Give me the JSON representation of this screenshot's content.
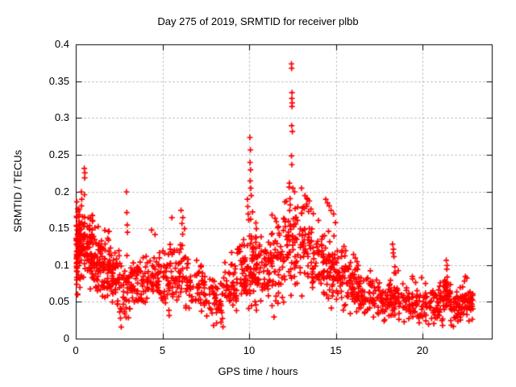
{
  "window": {
    "background": "#ffffff"
  },
  "chart_data": {
    "type": "scatter",
    "title": "Day 275 of 2019, SRMTID for receiver plbb",
    "xlabel": "GPS time / hours",
    "ylabel": "SRMTID / TECUs",
    "xlim": [
      0,
      24
    ],
    "ylim": [
      0,
      0.4
    ],
    "xticks": [
      0,
      5,
      10,
      15,
      20
    ],
    "yticks": [
      0,
      0.05,
      0.1,
      0.15,
      0.2,
      0.25,
      0.3,
      0.35,
      0.4
    ],
    "xtick_labels": [
      "0",
      "5",
      "10",
      "15",
      "20"
    ],
    "ytick_labels": [
      "0",
      "0.05",
      "0.1",
      "0.15",
      "0.2",
      "0.25",
      "0.3",
      "0.35",
      "0.4"
    ],
    "grid": true,
    "grid_style": "dashed",
    "legend": "none",
    "data_time_range": [
      0,
      22.9
    ],
    "marker": {
      "shape": "plus",
      "color": "#ff0000",
      "size": 7,
      "stroke_width": 1.7
    },
    "grid_color": "#a8a8a8",
    "axis_color": "#000000",
    "seed": 20190275,
    "density_bins": [
      [
        0.0,
        0.15,
        55,
        0.12,
        0.06,
        0.19
      ],
      [
        0.15,
        0.5,
        55,
        0.13,
        0.07,
        0.2
      ],
      [
        0.5,
        1.0,
        60,
        0.115,
        0.068,
        0.185
      ],
      [
        1.0,
        1.5,
        50,
        0.1,
        0.058,
        0.16
      ],
      [
        1.5,
        2.0,
        48,
        0.09,
        0.05,
        0.155
      ],
      [
        2.0,
        2.5,
        45,
        0.08,
        0.045,
        0.13
      ],
      [
        2.5,
        3.2,
        48,
        0.07,
        0.015,
        0.125
      ],
      [
        3.2,
        4.0,
        50,
        0.072,
        0.038,
        0.12
      ],
      [
        4.0,
        4.8,
        48,
        0.075,
        0.04,
        0.13
      ],
      [
        4.8,
        5.6,
        50,
        0.078,
        0.022,
        0.135
      ],
      [
        5.6,
        6.5,
        52,
        0.085,
        0.04,
        0.15
      ],
      [
        6.5,
        7.5,
        52,
        0.07,
        0.033,
        0.115
      ],
      [
        7.5,
        8.5,
        50,
        0.055,
        0.015,
        0.1
      ],
      [
        8.5,
        9.3,
        48,
        0.068,
        0.038,
        0.12
      ],
      [
        9.3,
        9.9,
        45,
        0.085,
        0.048,
        0.16
      ],
      [
        9.9,
        10.4,
        52,
        0.1,
        0.035,
        0.185
      ],
      [
        10.4,
        11.2,
        52,
        0.09,
        0.048,
        0.155
      ],
      [
        11.2,
        12.0,
        55,
        0.1,
        0.03,
        0.175
      ],
      [
        12.0,
        12.7,
        58,
        0.125,
        0.058,
        0.215
      ],
      [
        12.7,
        13.6,
        58,
        0.125,
        0.058,
        0.205
      ],
      [
        13.6,
        14.3,
        52,
        0.1,
        0.048,
        0.175
      ],
      [
        14.3,
        15.0,
        50,
        0.09,
        0.042,
        0.16
      ],
      [
        15.0,
        15.8,
        48,
        0.08,
        0.038,
        0.14
      ],
      [
        15.8,
        16.4,
        45,
        0.068,
        0.033,
        0.115
      ],
      [
        16.4,
        17.2,
        46,
        0.058,
        0.028,
        0.1
      ],
      [
        17.2,
        18.1,
        46,
        0.05,
        0.024,
        0.09
      ],
      [
        18.1,
        18.6,
        40,
        0.055,
        0.028,
        0.1
      ],
      [
        18.6,
        19.6,
        50,
        0.05,
        0.022,
        0.092
      ],
      [
        19.6,
        20.6,
        50,
        0.045,
        0.016,
        0.085
      ],
      [
        20.6,
        21.2,
        42,
        0.045,
        0.018,
        0.08
      ],
      [
        21.2,
        21.6,
        40,
        0.058,
        0.028,
        0.1
      ],
      [
        21.6,
        22.3,
        46,
        0.045,
        0.014,
        0.08
      ],
      [
        22.3,
        22.9,
        44,
        0.05,
        0.02,
        0.085
      ]
    ],
    "outliers": [
      [
        0.3,
        0.2
      ],
      [
        0.32,
        0.19
      ],
      [
        0.47,
        0.232
      ],
      [
        0.5,
        0.226
      ],
      [
        0.49,
        0.219
      ],
      [
        2.9,
        0.2
      ],
      [
        2.92,
        0.172
      ],
      [
        2.94,
        0.155
      ],
      [
        2.96,
        0.145
      ],
      [
        4.35,
        0.148
      ],
      [
        4.55,
        0.142
      ],
      [
        5.52,
        0.165
      ],
      [
        6.05,
        0.175
      ],
      [
        6.15,
        0.165
      ],
      [
        6.1,
        0.157
      ],
      [
        6.25,
        0.15
      ],
      [
        9.88,
        0.19
      ],
      [
        9.9,
        0.18
      ],
      [
        9.92,
        0.17
      ],
      [
        9.95,
        0.162
      ],
      [
        10.02,
        0.274
      ],
      [
        10.05,
        0.257
      ],
      [
        10.03,
        0.24
      ],
      [
        10.06,
        0.23
      ],
      [
        10.04,
        0.215
      ],
      [
        10.07,
        0.205
      ],
      [
        10.1,
        0.195
      ],
      [
        12.42,
        0.374
      ],
      [
        12.43,
        0.368
      ],
      [
        12.45,
        0.335
      ],
      [
        12.44,
        0.327
      ],
      [
        12.46,
        0.321
      ],
      [
        12.45,
        0.316
      ],
      [
        12.43,
        0.29
      ],
      [
        12.47,
        0.282
      ],
      [
        12.42,
        0.249
      ],
      [
        12.44,
        0.237
      ],
      [
        12.3,
        0.212
      ],
      [
        12.5,
        0.205
      ],
      [
        12.6,
        0.2
      ],
      [
        13.0,
        0.205
      ],
      [
        13.2,
        0.195
      ],
      [
        13.35,
        0.19
      ],
      [
        14.4,
        0.19
      ],
      [
        14.5,
        0.185
      ],
      [
        14.6,
        0.181
      ],
      [
        14.7,
        0.175
      ],
      [
        14.85,
        0.17
      ],
      [
        15.45,
        0.126
      ],
      [
        15.55,
        0.12
      ],
      [
        15.5,
        0.113
      ],
      [
        16.0,
        0.115
      ],
      [
        16.1,
        0.11
      ],
      [
        16.2,
        0.105
      ],
      [
        18.25,
        0.129
      ],
      [
        18.3,
        0.122
      ],
      [
        18.28,
        0.117
      ],
      [
        18.33,
        0.112
      ],
      [
        21.35,
        0.107
      ],
      [
        21.4,
        0.1
      ],
      [
        21.38,
        0.095
      ],
      [
        22.45,
        0.085
      ]
    ]
  }
}
